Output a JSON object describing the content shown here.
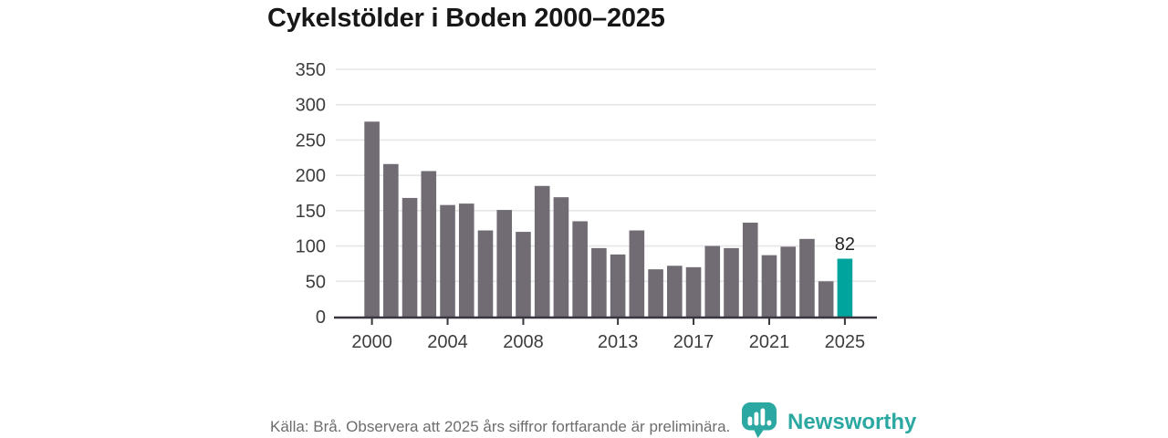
{
  "title": "Cykelstölder i Boden 2000–2025",
  "chart_data": {
    "type": "bar",
    "title": "Cykelstölder i Boden 2000–2025",
    "x": [
      2000,
      2001,
      2002,
      2003,
      2004,
      2005,
      2006,
      2007,
      2008,
      2009,
      2010,
      2011,
      2012,
      2013,
      2014,
      2015,
      2016,
      2017,
      2018,
      2019,
      2020,
      2021,
      2022,
      2023,
      2024,
      2025
    ],
    "values": [
      276,
      216,
      168,
      206,
      158,
      160,
      122,
      151,
      120,
      185,
      169,
      135,
      97,
      88,
      122,
      67,
      72,
      70,
      100,
      97,
      133,
      87,
      99,
      110,
      50,
      82
    ],
    "highlight_year": 2025,
    "highlight_value_label": "82",
    "xticks": [
      2000,
      2004,
      2008,
      2013,
      2017,
      2021,
      2025
    ],
    "yticks": [
      0,
      50,
      100,
      150,
      200,
      250,
      300,
      350
    ],
    "ylim": [
      0,
      350
    ],
    "grid": "horizontal",
    "legend": "none",
    "xlabel": "",
    "ylabel": ""
  },
  "footer": {
    "source_note": "Källa: Brå. Observera att 2025 års siffror fortfarande är preliminära.",
    "logo_text": "Newsworthy"
  },
  "icons": {
    "logo_icon": "newsworthy-pin-barchart-icon"
  },
  "colors": {
    "background": "#ffffff",
    "bar_gray": "#716c74",
    "highlight_teal": "#00a49d",
    "logo_teal": "#2aa8a1",
    "title_text": "#171717",
    "axis_text": "#3d3d3d",
    "bar_label_text": "#222222",
    "grid_line": "#e6e5e8",
    "axis_line": "#3a363f",
    "footer_text": "#6d6d6d"
  }
}
